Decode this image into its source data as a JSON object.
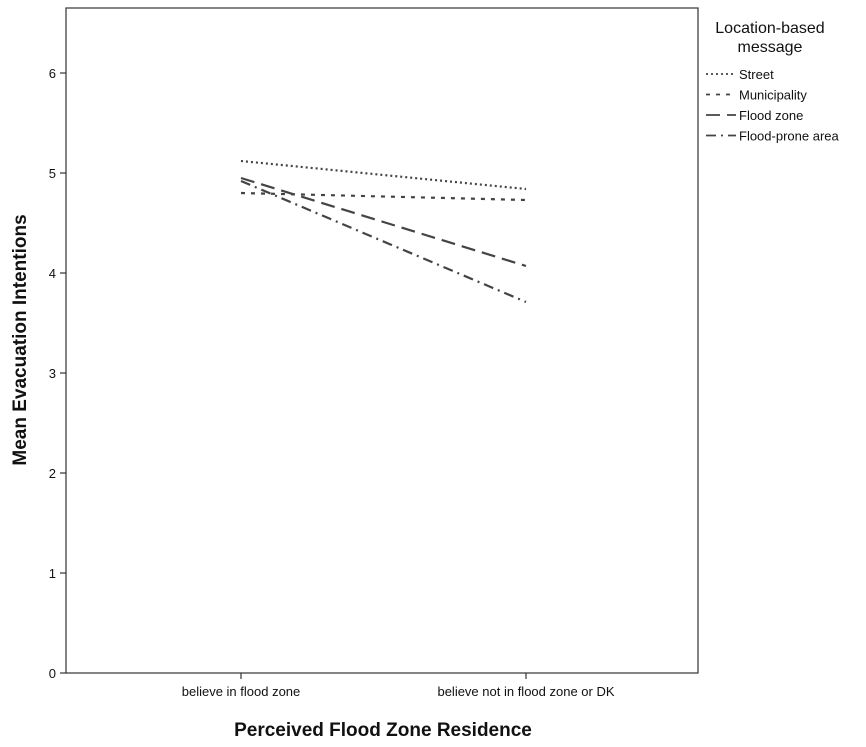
{
  "chart_data": {
    "type": "line",
    "xlabel": "Perceived Flood Zone Residence",
    "ylabel": "Mean Evacuation Intentions",
    "categories": [
      "believe in flood zone",
      "believe not in flood zone or DK"
    ],
    "ylim": [
      0,
      6.5
    ],
    "yticks": [
      0,
      1,
      2,
      3,
      4,
      5,
      6
    ],
    "grid": false,
    "legend": {
      "title_line1": "Location-based",
      "title_line2": "message",
      "placement": "right"
    },
    "series": [
      {
        "name": "Street",
        "values": [
          5.12,
          4.84
        ],
        "dash": "dotted",
        "color": "#444444"
      },
      {
        "name": "Municipality",
        "values": [
          4.8,
          4.73
        ],
        "dash": "short-dash",
        "color": "#444444"
      },
      {
        "name": "Flood zone",
        "values": [
          4.95,
          4.07
        ],
        "dash": "long-dash",
        "color": "#444444"
      },
      {
        "name": "Flood-prone area",
        "values": [
          4.92,
          3.71
        ],
        "dash": "dash-dot",
        "color": "#444444"
      }
    ]
  }
}
